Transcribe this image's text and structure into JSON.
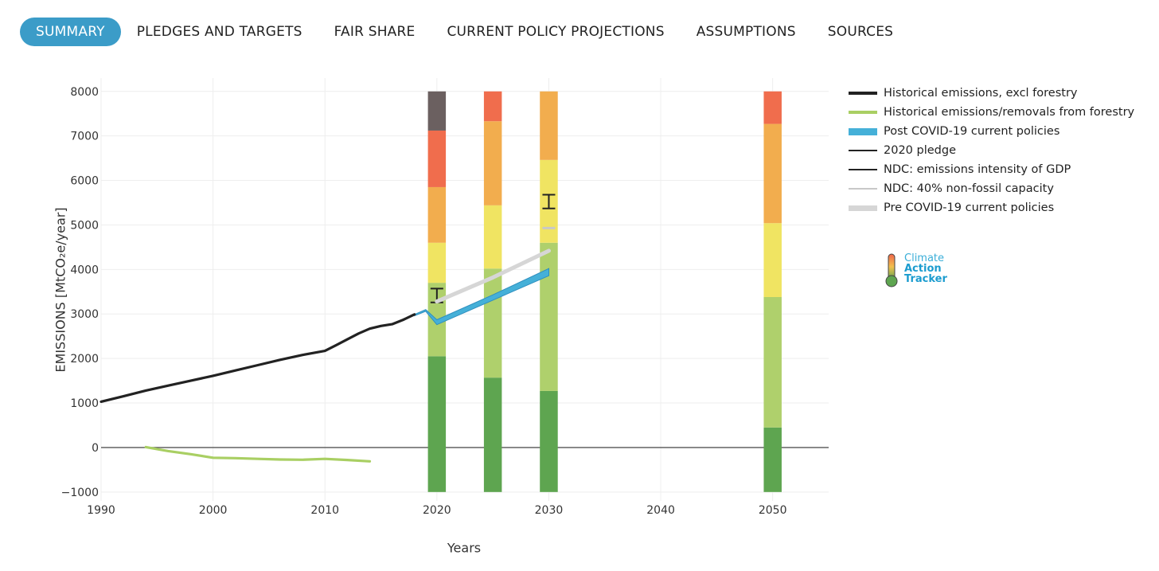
{
  "tabs": [
    {
      "label": "SUMMARY",
      "active": true
    },
    {
      "label": "PLEDGES AND TARGETS",
      "active": false
    },
    {
      "label": "FAIR SHARE",
      "active": false
    },
    {
      "label": "CURRENT POLICY PROJECTIONS",
      "active": false
    },
    {
      "label": "ASSUMPTIONS",
      "active": false
    },
    {
      "label": "SOURCES",
      "active": false
    }
  ],
  "logo": {
    "line1": "Climate",
    "line2": "Action",
    "line3": "Tracker"
  },
  "chart_data": {
    "type": "line",
    "xlabel": "Years",
    "ylabel": "EMISSIONS [MtCO₂e/year]",
    "xlim": [
      1990,
      2055
    ],
    "ylim": [
      -1200,
      8300
    ],
    "x_ticks": [
      1990,
      2000,
      2010,
      2020,
      2030,
      2040,
      2050
    ],
    "y_ticks": [
      -1000,
      0,
      1000,
      2000,
      3000,
      4000,
      5000,
      6000,
      7000,
      8000
    ],
    "grid": true,
    "legend_position": "right",
    "series": [
      {
        "name": "Historical emissions, excl forestry",
        "color": "#222222",
        "kind": "line",
        "points": [
          [
            1990,
            1030
          ],
          [
            1992,
            1150
          ],
          [
            1994,
            1280
          ],
          [
            1996,
            1390
          ],
          [
            1998,
            1500
          ],
          [
            2000,
            1610
          ],
          [
            2002,
            1730
          ],
          [
            2004,
            1850
          ],
          [
            2006,
            1970
          ],
          [
            2008,
            2080
          ],
          [
            2010,
            2170
          ],
          [
            2011,
            2300
          ],
          [
            2012,
            2430
          ],
          [
            2013,
            2560
          ],
          [
            2014,
            2670
          ],
          [
            2015,
            2730
          ],
          [
            2016,
            2770
          ],
          [
            2017,
            2870
          ],
          [
            2018,
            2990
          ]
        ]
      },
      {
        "name": "Historical emissions/removals from forestry",
        "color": "#a9cf63",
        "kind": "line",
        "points": [
          [
            1994,
            10
          ],
          [
            1996,
            -80
          ],
          [
            1998,
            -150
          ],
          [
            2000,
            -230
          ],
          [
            2002,
            -240
          ],
          [
            2004,
            -255
          ],
          [
            2006,
            -270
          ],
          [
            2008,
            -275
          ],
          [
            2010,
            -255
          ],
          [
            2012,
            -280
          ],
          [
            2014,
            -310
          ]
        ]
      },
      {
        "name": "Post COVID-19 current policies",
        "color": "#45b0d8",
        "kind": "band",
        "points": [
          [
            2018,
            2990
          ],
          [
            2019,
            3100
          ],
          [
            2020,
            2870
          ],
          [
            2025,
            3430
          ],
          [
            2030,
            4020
          ]
        ],
        "lower": [
          [
            2018,
            2960
          ],
          [
            2019,
            3060
          ],
          [
            2020,
            2760
          ],
          [
            2025,
            3310
          ],
          [
            2030,
            3860
          ]
        ]
      },
      {
        "name": "2020 pledge",
        "color": "#222222",
        "kind": "errorbar",
        "x": 2020,
        "low": 3260,
        "high": 3570
      },
      {
        "name": "NDC: emissions intensity of GDP",
        "color": "#222222",
        "kind": "errorbar",
        "x": 2030,
        "low": 5370,
        "high": 5680
      },
      {
        "name": "NDC: 40% non-fossil capacity",
        "color": "#c8c8c8",
        "kind": "marker",
        "x": 2030,
        "value": 4930
      },
      {
        "name": "Pre COVID-19 current policies",
        "color": "#d6d6d6",
        "kind": "line",
        "points": [
          [
            2020,
            3280
          ],
          [
            2025,
            3820
          ],
          [
            2030,
            4420
          ]
        ]
      }
    ],
    "stacked_bars": {
      "colors": [
        "#5ea550",
        "#afd06c",
        "#f0e462",
        "#f2ad4e",
        "#f06d4d",
        "#6b6060"
      ],
      "bars": [
        {
          "x": 2020,
          "segments": [
            [
              -1000,
              2050
            ],
            [
              2050,
              3700
            ],
            [
              3700,
              4600
            ],
            [
              4600,
              5850
            ],
            [
              5850,
              7120
            ],
            [
              7120,
              8000
            ]
          ]
        },
        {
          "x": 2025,
          "segments": [
            [
              -1000,
              1570
            ],
            [
              1570,
              4020
            ],
            [
              4020,
              5440
            ],
            [
              5440,
              7330
            ],
            [
              7330,
              8000
            ]
          ]
        },
        {
          "x": 2030,
          "segments": [
            [
              -1000,
              1270
            ],
            [
              1270,
              4600
            ],
            [
              4600,
              6460
            ],
            [
              6460,
              8000
            ]
          ]
        },
        {
          "x": 2050,
          "segments": [
            [
              -1000,
              450
            ],
            [
              450,
              3380
            ],
            [
              3380,
              5040
            ],
            [
              5040,
              7270
            ],
            [
              7270,
              8000
            ]
          ]
        }
      ]
    }
  }
}
